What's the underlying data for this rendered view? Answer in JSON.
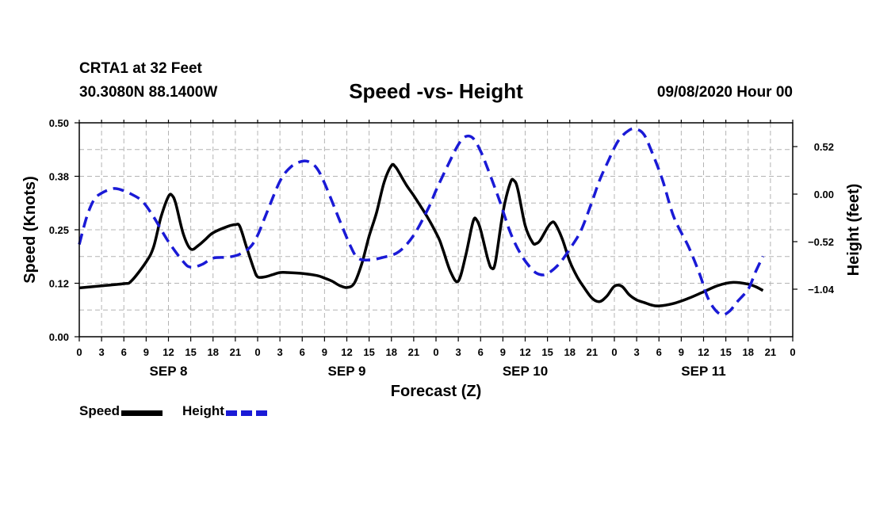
{
  "header": {
    "station": "CRTA1 at 32 Feet",
    "coords": "30.3080N 88.1400W",
    "title": "Speed -vs- Height",
    "date": "09/08/2020 Hour 00"
  },
  "colors": {
    "speed": "#000000",
    "height": "#1a1ad6",
    "grid": "#b4b4b4"
  },
  "chart_data": {
    "type": "line",
    "title": "Speed -vs- Height",
    "xlabel": "Forecast (Z)",
    "ylabel_left": "Speed (Knots)",
    "ylabel_right": "Height (feet)",
    "x_hours_range": [
      0,
      96
    ],
    "x_tick_labels": [
      "0",
      "3",
      "6",
      "9",
      "12",
      "15",
      "18",
      "21",
      "0",
      "3",
      "6",
      "9",
      "12",
      "15",
      "18",
      "21",
      "0",
      "3",
      "6",
      "9",
      "12",
      "15",
      "18",
      "21",
      "0",
      "3",
      "6",
      "9",
      "12",
      "15",
      "18",
      "21",
      "0"
    ],
    "x_day_labels": [
      {
        "label": "SEP 8",
        "hour": 12
      },
      {
        "label": "SEP 9",
        "hour": 36
      },
      {
        "label": "SEP 10",
        "hour": 60
      },
      {
        "label": "SEP 11",
        "hour": 84
      }
    ],
    "y_left": {
      "range": [
        0,
        0.5
      ],
      "ticks": [
        0,
        0.125,
        0.25,
        0.375,
        0.5
      ],
      "tick_labels": [
        "0.00",
        "0.12",
        "0.25",
        "0.38",
        "0.50"
      ]
    },
    "y_right": {
      "range": [
        -1.56,
        0.78
      ],
      "ticks": [
        -1.04,
        -0.52,
        0.0,
        0.52
      ],
      "tick_labels": [
        "−1.04",
        "−0.52",
        "0.00",
        "0.52"
      ]
    },
    "grid": true,
    "legend": {
      "position": "bottom-left",
      "speed_label": "Speed",
      "height_label": "Height"
    },
    "series": [
      {
        "name": "Speed",
        "axis": "left",
        "style": "solid",
        "points": [
          [
            0,
            0.114
          ],
          [
            3,
            0.119
          ],
          [
            6,
            0.124
          ],
          [
            7,
            0.13
          ],
          [
            9,
            0.175
          ],
          [
            10,
            0.21
          ],
          [
            11,
            0.28
          ],
          [
            12,
            0.328
          ],
          [
            12.5,
            0.33
          ],
          [
            13,
            0.31
          ],
          [
            14,
            0.24
          ],
          [
            15,
            0.205
          ],
          [
            16,
            0.213
          ],
          [
            17,
            0.228
          ],
          [
            18,
            0.243
          ],
          [
            20,
            0.258
          ],
          [
            21,
            0.262
          ],
          [
            21.6,
            0.258
          ],
          [
            22.5,
            0.21
          ],
          [
            23.5,
            0.158
          ],
          [
            24,
            0.14
          ],
          [
            25,
            0.14
          ],
          [
            26,
            0.145
          ],
          [
            27,
            0.15
          ],
          [
            28,
            0.15
          ],
          [
            30,
            0.148
          ],
          [
            32,
            0.143
          ],
          [
            33,
            0.137
          ],
          [
            34,
            0.13
          ],
          [
            35,
            0.12
          ],
          [
            36,
            0.115
          ],
          [
            37,
            0.125
          ],
          [
            38,
            0.17
          ],
          [
            39,
            0.235
          ],
          [
            40,
            0.29
          ],
          [
            41,
            0.36
          ],
          [
            42,
            0.4
          ],
          [
            42.5,
            0.398
          ],
          [
            43,
            0.385
          ],
          [
            44,
            0.355
          ],
          [
            45,
            0.33
          ],
          [
            46,
            0.303
          ],
          [
            47,
            0.275
          ],
          [
            48,
            0.243
          ],
          [
            48.5,
            0.225
          ],
          [
            49,
            0.2
          ],
          [
            50,
            0.15
          ],
          [
            51,
            0.13
          ],
          [
            52,
            0.19
          ],
          [
            53,
            0.27
          ],
          [
            53.5,
            0.272
          ],
          [
            54,
            0.25
          ],
          [
            55,
            0.18
          ],
          [
            55.5,
            0.16
          ],
          [
            56,
            0.175
          ],
          [
            57,
            0.29
          ],
          [
            58,
            0.36
          ],
          [
            58.5,
            0.365
          ],
          [
            59,
            0.345
          ],
          [
            60,
            0.26
          ],
          [
            61,
            0.22
          ],
          [
            61.5,
            0.218
          ],
          [
            62,
            0.225
          ],
          [
            63,
            0.255
          ],
          [
            63.5,
            0.266
          ],
          [
            64,
            0.265
          ],
          [
            65,
            0.228
          ],
          [
            66,
            0.176
          ],
          [
            67,
            0.14
          ],
          [
            68,
            0.113
          ],
          [
            69,
            0.09
          ],
          [
            70,
            0.082
          ],
          [
            71,
            0.095
          ],
          [
            72,
            0.118
          ],
          [
            73,
            0.118
          ],
          [
            74,
            0.098
          ],
          [
            75,
            0.086
          ],
          [
            76,
            0.08
          ],
          [
            77,
            0.074
          ],
          [
            78,
            0.072
          ],
          [
            80,
            0.078
          ],
          [
            82,
            0.09
          ],
          [
            84,
            0.105
          ],
          [
            86,
            0.12
          ],
          [
            88,
            0.127
          ],
          [
            90,
            0.123
          ],
          [
            91,
            0.117
          ],
          [
            92,
            0.108
          ]
        ]
      },
      {
        "name": "Height",
        "axis": "right",
        "style": "dashed",
        "points": [
          [
            0,
            -0.55
          ],
          [
            1,
            -0.25
          ],
          [
            2,
            -0.06
          ],
          [
            3,
            0.01
          ],
          [
            4.5,
            0.06
          ],
          [
            5.5,
            0.05
          ],
          [
            7,
            0.0
          ],
          [
            8.5,
            -0.08
          ],
          [
            10,
            -0.25
          ],
          [
            12,
            -0.52
          ],
          [
            14,
            -0.74
          ],
          [
            15,
            -0.8
          ],
          [
            16.5,
            -0.77
          ],
          [
            18,
            -0.7
          ],
          [
            20,
            -0.69
          ],
          [
            21.5,
            -0.66
          ],
          [
            23,
            -0.58
          ],
          [
            24,
            -0.45
          ],
          [
            25,
            -0.25
          ],
          [
            27,
            0.14
          ],
          [
            28.5,
            0.3
          ],
          [
            30,
            0.36
          ],
          [
            31,
            0.35
          ],
          [
            32,
            0.28
          ],
          [
            33,
            0.12
          ],
          [
            35,
            -0.28
          ],
          [
            36.5,
            -0.57
          ],
          [
            37.5,
            -0.7
          ],
          [
            39,
            -0.72
          ],
          [
            41,
            -0.69
          ],
          [
            43,
            -0.63
          ],
          [
            45,
            -0.45
          ],
          [
            47,
            -0.15
          ],
          [
            48,
            0.04
          ],
          [
            49.5,
            0.3
          ],
          [
            51,
            0.54
          ],
          [
            52,
            0.63
          ],
          [
            53,
            0.61
          ],
          [
            54,
            0.47
          ],
          [
            55,
            0.27
          ],
          [
            56.5,
            -0.06
          ],
          [
            58,
            -0.42
          ],
          [
            59.5,
            -0.67
          ],
          [
            61,
            -0.83
          ],
          [
            62,
            -0.88
          ],
          [
            63,
            -0.87
          ],
          [
            64.5,
            -0.77
          ],
          [
            66,
            -0.6
          ],
          [
            67.5,
            -0.4
          ],
          [
            69,
            -0.08
          ],
          [
            70,
            0.15
          ],
          [
            71,
            0.33
          ],
          [
            72.5,
            0.58
          ],
          [
            74,
            0.7
          ],
          [
            75,
            0.71
          ],
          [
            76,
            0.65
          ],
          [
            77,
            0.47
          ],
          [
            78.5,
            0.15
          ],
          [
            80,
            -0.25
          ],
          [
            82,
            -0.58
          ],
          [
            83.5,
            -0.88
          ],
          [
            84.5,
            -1.12
          ],
          [
            85.5,
            -1.26
          ],
          [
            86.5,
            -1.32
          ],
          [
            87.5,
            -1.28
          ],
          [
            88.5,
            -1.18
          ],
          [
            90,
            -1.04
          ],
          [
            91,
            -0.85
          ],
          [
            92,
            -0.68
          ]
        ]
      }
    ]
  }
}
